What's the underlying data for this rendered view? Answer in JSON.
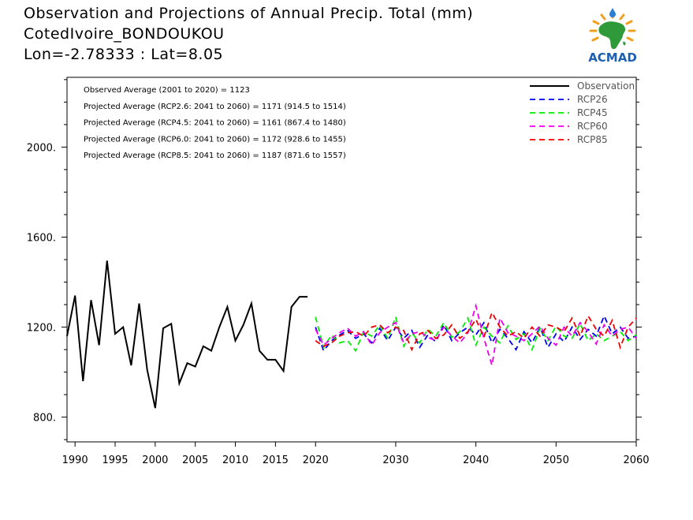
{
  "header": {
    "title": "Observation and Projections of Annual Precip. Total (mm)",
    "location": "CotedIvoire_BONDOUKOU",
    "coords": "Lon=-2.78333 : Lat=8.05"
  },
  "logo": {
    "text": "ACMAD",
    "icon": "africa-sun-drop-logo"
  },
  "stats": [
    "Observed Average (2001 to 2020) = 1123",
    "Projected Average (RCP2.6: 2041 to 2060) = 1171 (914.5 to 1514)",
    "Projected Average (RCP4.5: 2041 to 2060) = 1161 (867.4 to 1480)",
    "Projected Average (RCP6.0: 2041 to 2060) = 1172 (928.6 to 1455)",
    "Projected Average (RCP8.5: 2041 to 2060) = 1187 (871.6 to 1557)"
  ],
  "colors": {
    "observation": "#000000",
    "rcp26": "#0000ee",
    "rcp45": "#00ee00",
    "rcp60": "#ee00ee",
    "rcp85": "#ee0000"
  },
  "chart_data": {
    "type": "line",
    "xlim": [
      1989,
      2060
    ],
    "ylim": [
      690,
      2310
    ],
    "x_ticks": [
      1990,
      1995,
      2000,
      2005,
      2010,
      2015,
      2020,
      2030,
      2040,
      2050,
      2060
    ],
    "x_tick_labels": [
      "1990",
      "1995",
      "2000",
      "2005",
      "2010",
      "2015",
      "2020",
      "2030",
      "2040",
      "2050",
      "2060"
    ],
    "y_ticks": [
      800,
      1200,
      1600,
      2000
    ],
    "y_tick_labels": [
      "800.",
      "1200.",
      "1600.",
      "2000."
    ],
    "legend_position": "top-right",
    "series": [
      {
        "name": "Observation",
        "key": "observation",
        "style": "solid",
        "x": [
          1989,
          1990,
          1991,
          1992,
          1993,
          1994,
          1995,
          1996,
          1997,
          1998,
          1999,
          2000,
          2001,
          2002,
          2003,
          2004,
          2005,
          2006,
          2007,
          2008,
          2009,
          2010,
          2011,
          2012,
          2013,
          2014,
          2015,
          2016,
          2017,
          2018,
          2019
        ],
        "values": [
          1160,
          1340,
          960,
          1320,
          1120,
          1495,
          1170,
          1200,
          1030,
          1305,
          1010,
          840,
          1195,
          1215,
          950,
          1040,
          1025,
          1115,
          1095,
          1200,
          1290,
          1140,
          1210,
          1305,
          1095,
          1055,
          1055,
          1005,
          1290,
          1335,
          1335
        ]
      },
      {
        "name": "RCP26",
        "key": "rcp26",
        "style": "dashed",
        "x": [
          2020,
          2021,
          2022,
          2023,
          2024,
          2025,
          2026,
          2027,
          2028,
          2029,
          2030,
          2031,
          2032,
          2033,
          2034,
          2035,
          2036,
          2037,
          2038,
          2039,
          2040,
          2041,
          2042,
          2043,
          2044,
          2045,
          2046,
          2047,
          2048,
          2049,
          2050,
          2051,
          2052,
          2053,
          2054,
          2055,
          2056,
          2057,
          2058,
          2059,
          2060
        ],
        "values": [
          1200,
          1095,
          1140,
          1165,
          1185,
          1150,
          1170,
          1130,
          1195,
          1140,
          1200,
          1150,
          1185,
          1110,
          1165,
          1135,
          1210,
          1140,
          1175,
          1200,
          1165,
          1220,
          1130,
          1190,
          1150,
          1100,
          1180,
          1130,
          1200,
          1110,
          1170,
          1135,
          1200,
          1145,
          1190,
          1160,
          1250,
          1170,
          1200,
          1150,
          1160
        ]
      },
      {
        "name": "RCP45",
        "key": "rcp45",
        "style": "dashed",
        "x": [
          2020,
          2021,
          2022,
          2023,
          2024,
          2025,
          2026,
          2027,
          2028,
          2029,
          2030,
          2031,
          2032,
          2033,
          2034,
          2035,
          2036,
          2037,
          2038,
          2039,
          2040,
          2041,
          2042,
          2043,
          2044,
          2045,
          2046,
          2047,
          2048,
          2049,
          2050,
          2051,
          2052,
          2053,
          2054,
          2055,
          2056,
          2057,
          2058,
          2059,
          2060
        ],
        "values": [
          1245,
          1110,
          1165,
          1130,
          1140,
          1095,
          1180,
          1160,
          1210,
          1150,
          1245,
          1115,
          1175,
          1130,
          1190,
          1160,
          1220,
          1155,
          1180,
          1240,
          1120,
          1200,
          1160,
          1130,
          1205,
          1145,
          1170,
          1100,
          1195,
          1140,
          1205,
          1160,
          1150,
          1215,
          1140,
          1170,
          1140,
          1160,
          1180,
          1140,
          1165
        ]
      },
      {
        "name": "RCP60",
        "key": "rcp60",
        "style": "dashed",
        "x": [
          2020,
          2021,
          2022,
          2023,
          2024,
          2025,
          2026,
          2027,
          2028,
          2029,
          2030,
          2031,
          2032,
          2033,
          2034,
          2035,
          2036,
          2037,
          2038,
          2039,
          2040,
          2041,
          2042,
          2043,
          2044,
          2045,
          2046,
          2047,
          2048,
          2049,
          2050,
          2051,
          2052,
          2053,
          2054,
          2055,
          2056,
          2057,
          2058,
          2059,
          2060
        ],
        "values": [
          1190,
          1120,
          1150,
          1175,
          1195,
          1160,
          1180,
          1120,
          1175,
          1200,
          1220,
          1130,
          1170,
          1180,
          1155,
          1140,
          1200,
          1160,
          1130,
          1175,
          1295,
          1150,
          1030,
          1240,
          1175,
          1160,
          1140,
          1170,
          1205,
          1150,
          1120,
          1200,
          1160,
          1220,
          1180,
          1125,
          1210,
          1160,
          1190,
          1200,
          1150
        ]
      },
      {
        "name": "RCP85",
        "key": "rcp85",
        "style": "dashed",
        "x": [
          2020,
          2021,
          2022,
          2023,
          2024,
          2025,
          2026,
          2027,
          2028,
          2029,
          2030,
          2031,
          2032,
          2033,
          2034,
          2035,
          2036,
          2037,
          2038,
          2039,
          2040,
          2041,
          2042,
          2043,
          2044,
          2045,
          2046,
          2047,
          2048,
          2049,
          2050,
          2051,
          2052,
          2053,
          2054,
          2055,
          2056,
          2057,
          2058,
          2059,
          2060
        ],
        "values": [
          1140,
          1115,
          1130,
          1160,
          1175,
          1180,
          1160,
          1200,
          1210,
          1175,
          1200,
          1185,
          1100,
          1170,
          1185,
          1150,
          1165,
          1210,
          1150,
          1180,
          1235,
          1155,
          1265,
          1200,
          1160,
          1180,
          1150,
          1200,
          1160,
          1210,
          1200,
          1180,
          1240,
          1160,
          1250,
          1190,
          1160,
          1230,
          1110,
          1200,
          1240
        ]
      }
    ]
  }
}
